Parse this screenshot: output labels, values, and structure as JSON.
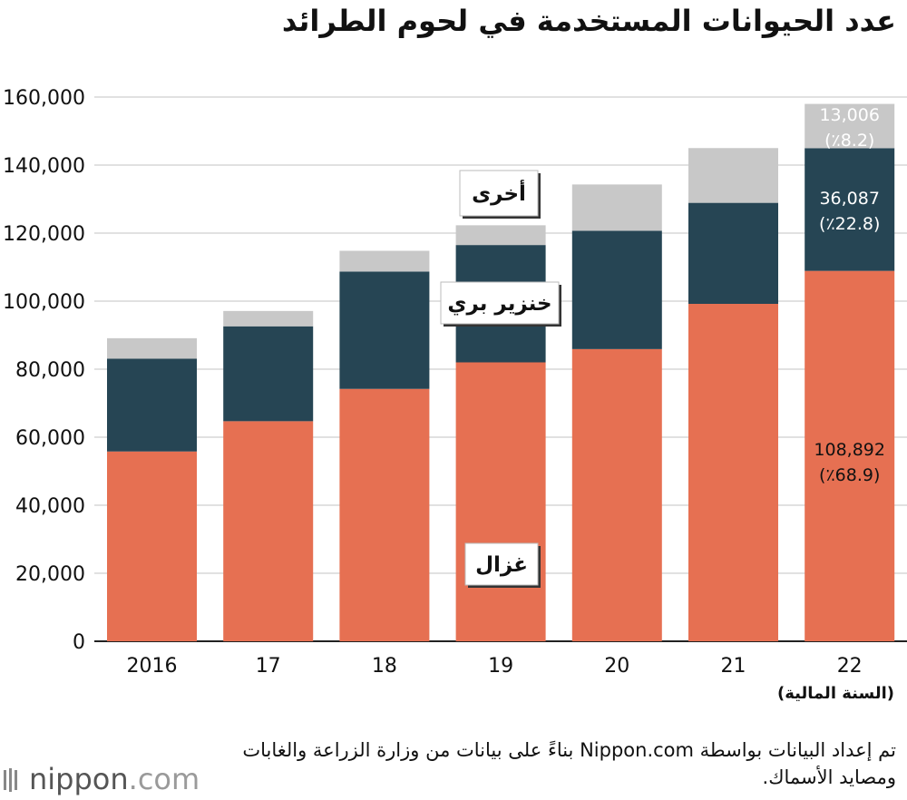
{
  "title": "عدد الحيوانات المستخدمة في لحوم الطرائد",
  "source_note": "تم إعداد البيانات بواسطة Nippon.com بناءً على بيانات من وزارة الزراعة والغابات ومصايد الأسماك.",
  "logo": {
    "name": "nippon",
    "dot": ".",
    "suffix": "com"
  },
  "colors": {
    "deer": "#e67052",
    "boar": "#264554",
    "other": "#c8c8c8"
  },
  "chart_data": {
    "type": "bar",
    "stacked": true,
    "title": "عدد الحيوانات المستخدمة في لحوم الطرائد",
    "xlabel": "(السنة المالية)",
    "ylabel": "",
    "ylim": [
      0,
      160000
    ],
    "yticks": [
      0,
      20000,
      40000,
      60000,
      80000,
      100000,
      120000,
      140000,
      160000
    ],
    "ytick_labels": [
      "0",
      "20,000",
      "40,000",
      "60,000",
      "80,000",
      "100,000",
      "120,000",
      "140,000",
      "160,000"
    ],
    "grid": true,
    "categories": [
      "2016",
      "17",
      "18",
      "19",
      "20",
      "21",
      "22"
    ],
    "series": [
      {
        "name": "غزال",
        "values": [
          55800,
          64700,
          74200,
          82000,
          85900,
          99200,
          108892
        ]
      },
      {
        "name": "خنزير بري",
        "values": [
          27300,
          27900,
          34500,
          34500,
          34800,
          29700,
          36087
        ]
      },
      {
        "name": "أخرى",
        "values": [
          6000,
          4500,
          6100,
          5800,
          13600,
          16100,
          13006
        ]
      }
    ],
    "annotations": [
      {
        "category": "22",
        "series": "أخرى",
        "value": "13,006",
        "share": "(٪8.2)"
      },
      {
        "category": "22",
        "series": "خنزير بري",
        "value": "36,087",
        "share": "(٪22.8)"
      },
      {
        "category": "22",
        "series": "غزال",
        "value": "108,892",
        "share": "(٪68.9)"
      }
    ]
  }
}
